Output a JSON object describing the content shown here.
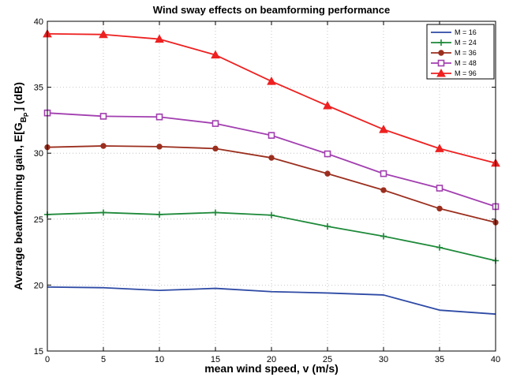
{
  "chart_data": {
    "type": "line",
    "title": "Wind sway effects on beamforming performance",
    "xlabel": "mean wind speed, v (m/s)",
    "ylabel_main": "Average beamforming gain, E[G",
    "ylabel_sub_b": "B",
    "ylabel_sub_p": "P",
    "ylabel_end": "] (dB)",
    "x": [
      0,
      5,
      10,
      15,
      20,
      25,
      30,
      35,
      40
    ],
    "xlim": [
      0,
      40
    ],
    "ylim": [
      15,
      40
    ],
    "xticks": [
      0,
      5,
      10,
      15,
      20,
      25,
      30,
      35,
      40
    ],
    "yticks": [
      15,
      20,
      25,
      30,
      35,
      40
    ],
    "grid": true,
    "legend_position": "top-right",
    "series": [
      {
        "name": "M = 16",
        "color": "#2e4aa5",
        "marker": "none",
        "values": [
          19.85,
          19.8,
          19.6,
          19.75,
          19.5,
          19.4,
          19.25,
          18.1,
          17.8
        ]
      },
      {
        "name": "M = 24",
        "color": "#1e8a3a",
        "marker": "plus",
        "values": [
          25.35,
          25.5,
          25.35,
          25.5,
          25.3,
          24.45,
          23.7,
          22.85,
          21.85
        ]
      },
      {
        "name": "M = 36",
        "color": "#9b2f1f",
        "marker": "circle",
        "values": [
          30.45,
          30.55,
          30.5,
          30.35,
          29.65,
          28.45,
          27.2,
          25.8,
          24.75
        ]
      },
      {
        "name": "M = 48",
        "color": "#a23fb0",
        "marker": "square",
        "values": [
          33.05,
          32.8,
          32.75,
          32.25,
          31.35,
          29.95,
          28.45,
          27.35,
          25.95
        ]
      },
      {
        "name": "M = 96",
        "color": "#ee2020",
        "marker": "triangle",
        "values": [
          39.05,
          39.0,
          38.65,
          37.45,
          35.45,
          33.6,
          31.8,
          30.35,
          29.25
        ]
      }
    ]
  }
}
